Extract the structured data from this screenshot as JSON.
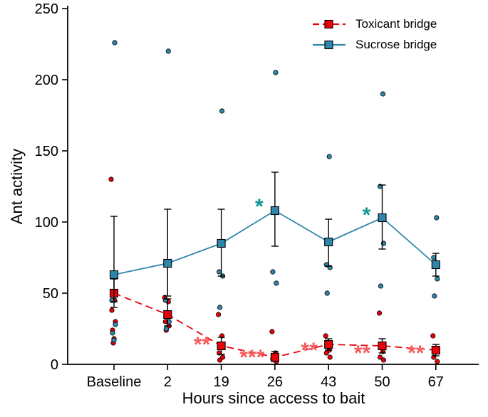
{
  "figure": {
    "background": "#ffffff",
    "axis_color": "#000000"
  },
  "chart_data": {
    "type": "line",
    "title": "",
    "xlabel": "Hours since access to bait",
    "ylabel": "Ant activity",
    "categories": [
      "Baseline",
      "2",
      "19",
      "26",
      "43",
      "50",
      "67"
    ],
    "ylim": [
      0,
      250
    ],
    "yticks": [
      0,
      50,
      100,
      150,
      200,
      250
    ],
    "grid": false,
    "legend_position": "top-right-inside",
    "series": [
      {
        "name": "Toxicant bridge",
        "color": "#e8000b",
        "line_style": "dashed",
        "marker": "square",
        "means": [
          50,
          35,
          13,
          5,
          14,
          13,
          10
        ],
        "err_low": [
          10,
          8,
          6,
          3,
          4,
          5,
          4
        ],
        "err_high": [
          10,
          11,
          6,
          4,
          4,
          5,
          4
        ],
        "points": [
          [
            130,
            45,
            38,
            30,
            24,
            18,
            15
          ],
          [
            47,
            44,
            30,
            27,
            24
          ],
          [
            35,
            20,
            8,
            5,
            3
          ],
          [
            23,
            8,
            4,
            2
          ],
          [
            20,
            10,
            8,
            5
          ],
          [
            36,
            9,
            5,
            3
          ],
          [
            20,
            10,
            5,
            2
          ]
        ]
      },
      {
        "name": "Sucrose bridge",
        "color": "#2e86ab",
        "line_style": "solid",
        "marker": "square",
        "means": [
          63,
          71,
          85,
          108,
          86,
          103,
          70
        ],
        "err_low": [
          19,
          23,
          23,
          25,
          17,
          22,
          8
        ],
        "err_high": [
          41,
          38,
          24,
          27,
          16,
          23,
          8
        ],
        "points": [
          [
            226,
            45,
            28,
            22,
            17
          ],
          [
            220,
            45,
            30,
            25
          ],
          [
            178,
            65,
            62,
            40
          ],
          [
            205,
            65,
            57
          ],
          [
            146,
            70,
            68,
            50
          ],
          [
            190,
            125,
            85,
            55
          ],
          [
            103,
            75,
            60,
            48
          ]
        ]
      }
    ],
    "annotations": [
      {
        "text": "*",
        "category_index": 3,
        "y": 112,
        "dx": -22,
        "color": "#0e9594",
        "series": "Sucrose bridge"
      },
      {
        "text": "*",
        "category_index": 5,
        "y": 106,
        "dx": -22,
        "color": "#0e9594",
        "series": "Sucrose bridge"
      },
      {
        "text": "**",
        "category_index": 2,
        "y": 15,
        "dx": -27,
        "color": "#f25c5c",
        "series": "Toxicant bridge"
      },
      {
        "text": "***",
        "category_index": 3,
        "y": 6,
        "dx": -32,
        "color": "#f25c5c",
        "series": "Toxicant bridge"
      },
      {
        "text": "**",
        "category_index": 4,
        "y": 11,
        "dx": -27,
        "color": "#f25c5c",
        "series": "Toxicant bridge"
      },
      {
        "text": "**",
        "category_index": 5,
        "y": 9,
        "dx": -28,
        "color": "#f25c5c",
        "series": "Toxicant bridge"
      },
      {
        "text": "**",
        "category_index": 6,
        "y": 9,
        "dx": -28,
        "color": "#f25c5c",
        "series": "Toxicant bridge"
      }
    ]
  }
}
